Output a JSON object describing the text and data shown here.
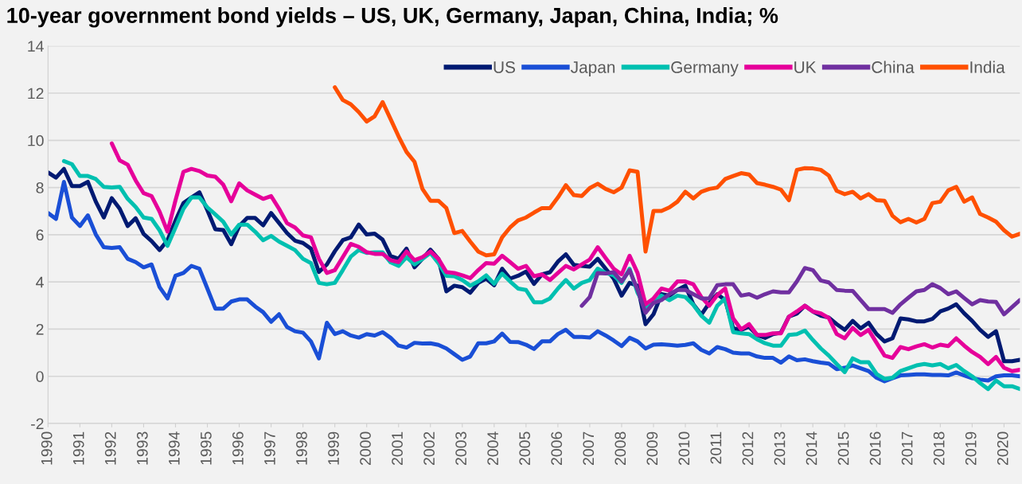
{
  "chart_data": {
    "type": "line",
    "title": "10-year government bond yields – US, UK, Germany, Japan, China, India; %",
    "x": [
      1990,
      1990.25,
      1990.5,
      1990.75,
      1991,
      1991.25,
      1991.5,
      1991.75,
      1992,
      1992.25,
      1992.5,
      1992.75,
      1993,
      1993.25,
      1993.5,
      1993.75,
      1994,
      1994.25,
      1994.5,
      1994.75,
      1995,
      1995.25,
      1995.5,
      1995.75,
      1996,
      1996.25,
      1996.5,
      1996.75,
      1997,
      1997.25,
      1997.5,
      1997.75,
      1998,
      1998.25,
      1998.5,
      1998.75,
      1999,
      1999.25,
      1999.5,
      1999.75,
      2000,
      2000.25,
      2000.5,
      2000.75,
      2001,
      2001.25,
      2001.5,
      2001.75,
      2002,
      2002.25,
      2002.5,
      2002.75,
      2003,
      2003.25,
      2003.5,
      2003.75,
      2004,
      2004.25,
      2004.5,
      2004.75,
      2005,
      2005.25,
      2005.5,
      2005.75,
      2006,
      2006.25,
      2006.5,
      2006.75,
      2007,
      2007.25,
      2007.5,
      2007.75,
      2008,
      2008.25,
      2008.5,
      2008.75,
      2009,
      2009.25,
      2009.5,
      2009.75,
      2010,
      2010.25,
      2010.5,
      2010.75,
      2011,
      2011.25,
      2011.5,
      2011.75,
      2012,
      2012.25,
      2012.5,
      2012.75,
      2013,
      2013.25,
      2013.5,
      2013.75,
      2014,
      2014.25,
      2014.5,
      2014.75,
      2015,
      2015.25,
      2015.5,
      2015.75,
      2016,
      2016.25,
      2016.5,
      2016.75,
      2017,
      2017.25,
      2017.5,
      2017.75,
      2018,
      2018.25,
      2018.5,
      2018.75,
      2019,
      2019.25,
      2019.5,
      2019.75,
      2020,
      2020.25,
      2020.5
    ],
    "series": [
      {
        "name": "US",
        "color": "#001a72",
        "values": [
          8.64,
          8.42,
          8.79,
          8.06,
          8.06,
          8.24,
          7.4,
          6.73,
          7.55,
          7.1,
          6.37,
          6.7,
          6.03,
          5.73,
          5.35,
          5.77,
          6.6,
          7.34,
          7.58,
          7.8,
          7.04,
          6.23,
          6.2,
          5.6,
          6.37,
          6.71,
          6.71,
          6.4,
          6.92,
          6.5,
          6.07,
          5.75,
          5.65,
          5.41,
          4.42,
          4.74,
          5.3,
          5.77,
          5.89,
          6.43,
          6.01,
          6.05,
          5.79,
          5.1,
          4.98,
          5.41,
          4.62,
          4.98,
          5.37,
          4.98,
          3.6,
          3.84,
          3.78,
          3.54,
          3.96,
          4.14,
          3.86,
          4.56,
          4.14,
          4.26,
          4.44,
          3.92,
          4.32,
          4.41,
          4.86,
          5.17,
          4.72,
          4.68,
          4.65,
          4.98,
          4.56,
          4.14,
          3.42,
          3.96,
          3.84,
          2.21,
          2.63,
          3.48,
          3.42,
          3.66,
          3.84,
          3.05,
          2.61,
          3.11,
          3.48,
          3.23,
          2.03,
          1.97,
          2.1,
          1.75,
          1.63,
          1.79,
          1.85,
          2.53,
          2.66,
          2.99,
          2.75,
          2.57,
          2.49,
          2.21,
          1.97,
          2.35,
          2.03,
          2.27,
          1.79,
          1.48,
          1.61,
          2.45,
          2.41,
          2.33,
          2.33,
          2.43,
          2.75,
          2.87,
          3.05,
          2.67,
          2.35,
          1.97,
          1.67,
          1.91,
          0.64,
          0.64,
          0.7
        ]
      },
      {
        "name": "Japan",
        "color": "#1a4fd6",
        "values": [
          6.92,
          6.67,
          8.24,
          6.73,
          6.37,
          6.82,
          6.01,
          5.47,
          5.44,
          5.47,
          4.98,
          4.84,
          4.62,
          4.74,
          3.78,
          3.3,
          4.26,
          4.38,
          4.68,
          4.56,
          3.72,
          2.87,
          2.87,
          3.17,
          3.26,
          3.26,
          2.96,
          2.72,
          2.31,
          2.63,
          2.09,
          1.91,
          1.85,
          1.48,
          0.76,
          2.27,
          1.79,
          1.91,
          1.73,
          1.64,
          1.79,
          1.73,
          1.87,
          1.63,
          1.3,
          1.22,
          1.42,
          1.39,
          1.4,
          1.33,
          1.18,
          0.94,
          0.7,
          0.84,
          1.4,
          1.4,
          1.48,
          1.81,
          1.46,
          1.45,
          1.34,
          1.16,
          1.48,
          1.48,
          1.79,
          1.97,
          1.67,
          1.67,
          1.64,
          1.91,
          1.73,
          1.52,
          1.28,
          1.63,
          1.48,
          1.18,
          1.34,
          1.36,
          1.33,
          1.3,
          1.33,
          1.4,
          1.12,
          0.97,
          1.24,
          1.15,
          1.0,
          0.97,
          0.97,
          0.84,
          0.78,
          0.78,
          0.58,
          0.84,
          0.68,
          0.72,
          0.64,
          0.58,
          0.54,
          0.3,
          0.36,
          0.46,
          0.34,
          0.22,
          -0.06,
          -0.21,
          -0.08,
          0.04,
          0.06,
          0.08,
          0.08,
          0.06,
          0.06,
          0.04,
          0.16,
          0.04,
          -0.08,
          -0.14,
          -0.18,
          0.0,
          0.04,
          0.04,
          0.0
        ]
      },
      {
        "name": "Germany",
        "color": "#00c0b0",
        "values": [
          null,
          null,
          9.12,
          8.99,
          8.49,
          8.49,
          8.36,
          8.03,
          8.0,
          8.03,
          7.52,
          7.18,
          6.73,
          6.67,
          6.19,
          5.53,
          6.31,
          7.1,
          7.58,
          7.58,
          7.16,
          6.86,
          6.55,
          6.01,
          6.43,
          6.43,
          6.13,
          5.77,
          5.95,
          5.71,
          5.53,
          5.35,
          4.98,
          4.8,
          3.96,
          3.9,
          3.96,
          4.5,
          5.07,
          5.35,
          5.23,
          5.25,
          5.25,
          4.83,
          4.68,
          5.05,
          4.74,
          4.98,
          5.23,
          4.8,
          4.26,
          4.24,
          4.08,
          3.84,
          4.02,
          4.28,
          3.92,
          4.35,
          4.02,
          3.72,
          3.66,
          3.14,
          3.14,
          3.3,
          3.72,
          4.08,
          3.72,
          3.96,
          4.08,
          4.56,
          4.38,
          4.28,
          3.96,
          4.56,
          3.54,
          2.93,
          3.11,
          3.42,
          3.23,
          3.42,
          3.36,
          3.03,
          2.57,
          2.27,
          2.99,
          3.3,
          1.87,
          1.82,
          1.79,
          1.57,
          1.4,
          1.3,
          1.3,
          1.75,
          1.79,
          1.94,
          1.54,
          1.18,
          0.88,
          0.52,
          0.18,
          0.76,
          0.6,
          0.6,
          0.1,
          -0.11,
          -0.06,
          0.22,
          0.34,
          0.46,
          0.52,
          0.46,
          0.52,
          0.34,
          0.48,
          0.22,
          0.0,
          -0.29,
          -0.54,
          -0.18,
          -0.42,
          -0.42,
          -0.54
        ]
      },
      {
        "name": "UK",
        "color": "#e6009a",
        "values": [
          null,
          null,
          null,
          null,
          null,
          null,
          null,
          null,
          9.87,
          9.15,
          8.97,
          8.3,
          7.76,
          7.64,
          6.98,
          6.13,
          7.46,
          8.67,
          8.79,
          8.7,
          8.51,
          8.46,
          8.12,
          7.42,
          8.18,
          7.88,
          7.7,
          7.52,
          7.64,
          7.1,
          6.49,
          6.31,
          5.97,
          5.89,
          4.98,
          4.38,
          4.5,
          5.05,
          5.61,
          5.49,
          5.26,
          5.19,
          5.19,
          4.92,
          4.84,
          5.29,
          4.92,
          5.05,
          5.29,
          4.98,
          4.42,
          4.38,
          4.28,
          4.16,
          4.5,
          4.8,
          4.77,
          5.11,
          4.84,
          4.56,
          4.68,
          4.24,
          4.32,
          4.08,
          4.38,
          4.68,
          4.53,
          4.74,
          4.95,
          5.47,
          5.01,
          4.56,
          4.32,
          5.11,
          4.38,
          3.05,
          3.3,
          3.72,
          3.63,
          4.02,
          4.02,
          3.9,
          3.36,
          2.99,
          3.44,
          3.72,
          2.45,
          1.99,
          2.21,
          1.75,
          1.75,
          1.82,
          1.82,
          2.53,
          2.75,
          2.99,
          2.75,
          2.67,
          2.47,
          1.79,
          1.61,
          2.05,
          1.75,
          1.97,
          1.42,
          0.88,
          0.78,
          1.24,
          1.15,
          1.27,
          1.36,
          1.22,
          1.34,
          1.28,
          1.61,
          1.3,
          1.03,
          0.82,
          0.52,
          0.82,
          0.36,
          0.22,
          0.28
        ]
      },
      {
        "name": "China",
        "color": "#7030a0",
        "values": [
          null,
          null,
          null,
          null,
          null,
          null,
          null,
          null,
          null,
          null,
          null,
          null,
          null,
          null,
          null,
          null,
          null,
          null,
          null,
          null,
          null,
          null,
          null,
          null,
          null,
          null,
          null,
          null,
          null,
          null,
          null,
          null,
          null,
          null,
          null,
          null,
          null,
          null,
          null,
          null,
          null,
          null,
          null,
          null,
          null,
          null,
          null,
          null,
          null,
          null,
          null,
          null,
          null,
          null,
          null,
          null,
          null,
          null,
          null,
          null,
          null,
          null,
          null,
          null,
          null,
          null,
          null,
          2.99,
          3.36,
          4.38,
          4.36,
          4.41,
          4.02,
          4.5,
          3.66,
          2.69,
          3.11,
          3.23,
          3.48,
          3.66,
          3.66,
          3.48,
          3.3,
          3.3,
          3.86,
          3.9,
          3.9,
          3.42,
          3.48,
          3.33,
          3.48,
          3.6,
          3.56,
          3.56,
          4.02,
          4.59,
          4.5,
          4.06,
          3.98,
          3.66,
          3.63,
          3.62,
          3.23,
          2.85,
          2.85,
          2.85,
          2.69,
          3.05,
          3.33,
          3.6,
          3.66,
          3.9,
          3.74,
          3.48,
          3.6,
          3.32,
          3.05,
          3.23,
          3.17,
          3.15,
          2.63,
          2.93,
          3.23
        ]
      },
      {
        "name": "India",
        "color": "#ff5000",
        "values": [
          null,
          null,
          null,
          null,
          null,
          null,
          null,
          null,
          null,
          null,
          null,
          null,
          null,
          null,
          null,
          null,
          null,
          null,
          null,
          null,
          null,
          null,
          null,
          null,
          null,
          null,
          null,
          null,
          null,
          null,
          null,
          null,
          null,
          null,
          null,
          null,
          12.25,
          11.71,
          11.53,
          11.2,
          10.8,
          11.02,
          11.62,
          10.9,
          10.17,
          9.51,
          9.09,
          7.94,
          7.44,
          7.44,
          7.13,
          6.07,
          6.16,
          5.71,
          5.29,
          5.13,
          5.17,
          5.89,
          6.31,
          6.61,
          6.73,
          6.94,
          7.13,
          7.13,
          7.58,
          8.1,
          7.68,
          7.64,
          7.98,
          8.16,
          7.94,
          7.8,
          8.0,
          8.73,
          8.67,
          5.29,
          7.01,
          7.01,
          7.16,
          7.4,
          7.82,
          7.54,
          7.82,
          7.94,
          8.0,
          8.36,
          8.49,
          8.61,
          8.55,
          8.19,
          8.12,
          8.03,
          7.91,
          7.46,
          8.75,
          8.82,
          8.81,
          8.75,
          8.51,
          7.86,
          7.72,
          7.82,
          7.54,
          7.72,
          7.46,
          7.44,
          6.8,
          6.53,
          6.67,
          6.52,
          6.67,
          7.34,
          7.4,
          7.88,
          8.03,
          7.4,
          7.58,
          6.88,
          6.73,
          6.55,
          6.19,
          5.92,
          6.04
        ]
      }
    ],
    "xlim": [
      1990,
      2020.5
    ],
    "xticks": [
      1990,
      1991,
      1992,
      1993,
      1994,
      1995,
      1996,
      1997,
      1998,
      1999,
      2000,
      2001,
      2002,
      2003,
      2004,
      2005,
      2006,
      2007,
      2008,
      2009,
      2010,
      2011,
      2012,
      2013,
      2014,
      2015,
      2016,
      2017,
      2018,
      2019,
      2020
    ],
    "ylim": [
      -2,
      14
    ],
    "yticks": [
      -2,
      0,
      2,
      4,
      6,
      8,
      10,
      12,
      14
    ],
    "grid": "y",
    "legend": "top right"
  }
}
